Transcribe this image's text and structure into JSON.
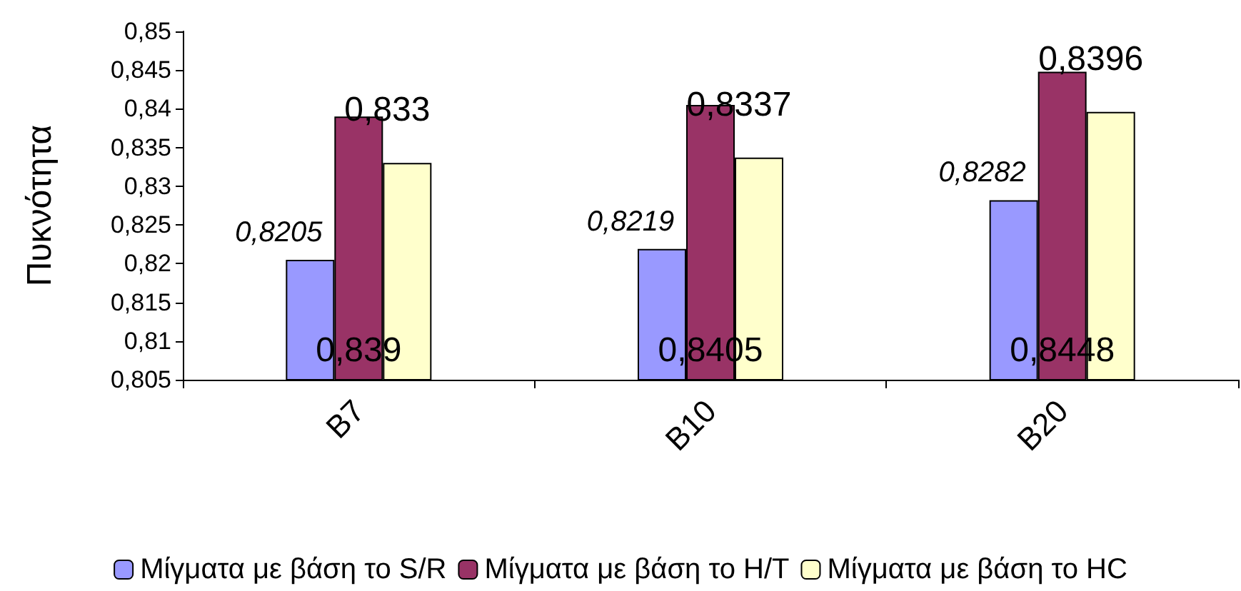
{
  "chart_data": {
    "type": "bar",
    "ylabel": "Πυκνότητα",
    "categories": [
      "B7",
      "B10",
      "B20"
    ],
    "series": [
      {
        "name": "Μίγματα με βάση το S/R",
        "color": "#9999ff",
        "values": [
          0.8205,
          0.8219,
          0.8282
        ],
        "value_labels": [
          "0,8205",
          "0,8219",
          "0,8282"
        ]
      },
      {
        "name": "Μίγματα με βάση το H/T",
        "color": "#993366",
        "values": [
          0.839,
          0.8405,
          0.8448
        ],
        "value_labels": [
          "0,839",
          "0,8405",
          "0,8448"
        ]
      },
      {
        "name": "Μίγματα με βάση το HC",
        "color": "#ffffcc",
        "values": [
          0.833,
          0.8337,
          0.8396
        ],
        "value_labels": [
          "0,833",
          "0,8337",
          "0,8396"
        ]
      }
    ],
    "ylim": [
      0.805,
      0.85
    ],
    "yticks": [
      {
        "value": 0.805,
        "label": "0,805"
      },
      {
        "value": 0.81,
        "label": "0,81"
      },
      {
        "value": 0.815,
        "label": "0,815"
      },
      {
        "value": 0.82,
        "label": "0,82"
      },
      {
        "value": 0.825,
        "label": "0,825"
      },
      {
        "value": 0.83,
        "label": "0,83"
      },
      {
        "value": 0.835,
        "label": "0,835"
      },
      {
        "value": 0.84,
        "label": "0,84"
      },
      {
        "value": 0.845,
        "label": "0,845"
      },
      {
        "value": 0.85,
        "label": "0,85"
      }
    ],
    "grid": false,
    "legend": "bottom"
  }
}
